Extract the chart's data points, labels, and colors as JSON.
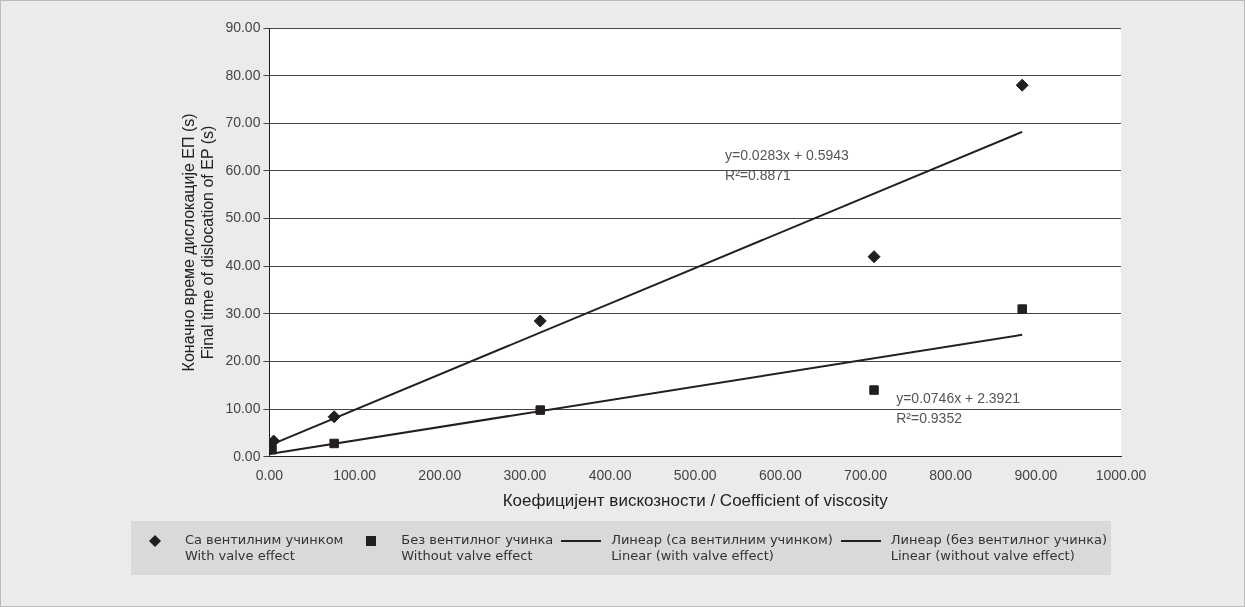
{
  "chart_data": {
    "type": "scatter",
    "xlabel": "Коефицијент вискозности / Coefficient of viscosity",
    "ylabel": "Коначно време дислокације ЕП (s)\nFinal time of dislocation of EP (s)",
    "xlim": [
      0,
      1000
    ],
    "ylim": [
      0,
      90
    ],
    "xticks": [
      {
        "value": 0,
        "label": "0.00"
      },
      {
        "value": 100,
        "label": "100.00"
      },
      {
        "value": 200,
        "label": "200.00"
      },
      {
        "value": 300,
        "label": "300.00"
      },
      {
        "value": 400,
        "label": "400.00"
      },
      {
        "value": 500,
        "label": "500.00"
      },
      {
        "value": 600,
        "label": "600.00"
      },
      {
        "value": 700,
        "label": "700.00"
      },
      {
        "value": 800,
        "label": "800.00"
      },
      {
        "value": 900,
        "label": "900.00"
      },
      {
        "value": 1000,
        "label": "1000.00"
      }
    ],
    "yticks": [
      {
        "value": 0,
        "label": "0.00"
      },
      {
        "value": 10,
        "label": "10.00"
      },
      {
        "value": 20,
        "label": "20.00"
      },
      {
        "value": 30,
        "label": "30.00"
      },
      {
        "value": 40,
        "label": "40.00"
      },
      {
        "value": 50,
        "label": "50.00"
      },
      {
        "value": 60,
        "label": "60.00"
      },
      {
        "value": 70,
        "label": "70.00"
      },
      {
        "value": 80,
        "label": "80.00"
      },
      {
        "value": 90,
        "label": "90.00"
      }
    ],
    "grid": "y",
    "legend": "bottom",
    "series": [
      {
        "name": "Са вентилним учинком\nWith valve effect",
        "color": "#231f20",
        "marker": "diamond",
        "x": [
          5,
          76,
          318,
          710,
          884
        ],
        "values": [
          3.3,
          8.4,
          28.5,
          42,
          78
        ]
      },
      {
        "name": "Без вентилног учинка\nWithout valve effect",
        "color": "#231f20",
        "marker": "square",
        "x": [
          3,
          76,
          318,
          710,
          884
        ],
        "values": [
          1.5,
          2.8,
          9.8,
          14,
          31
        ]
      },
      {
        "name": "Линеар (са вентилним учинком)\nLinear (with valve effect)",
        "type": "line",
        "color": "#231f20",
        "marker": "none",
        "x": [
          0,
          884
        ],
        "values": [
          2.4,
          68.2
        ]
      },
      {
        "name": "Линеар (без вентилног учинка)\nLinear (without valve effect)",
        "type": "line",
        "color": "#231f20",
        "marker": "none",
        "x": [
          0,
          884
        ],
        "values": [
          0.6,
          25.6
        ]
      }
    ],
    "annotations": [
      "y=0.0283x + 0.5943",
      "R²=0.8871",
      "y=0.0746x + 2.3921",
      "R²=0.9352"
    ]
  }
}
